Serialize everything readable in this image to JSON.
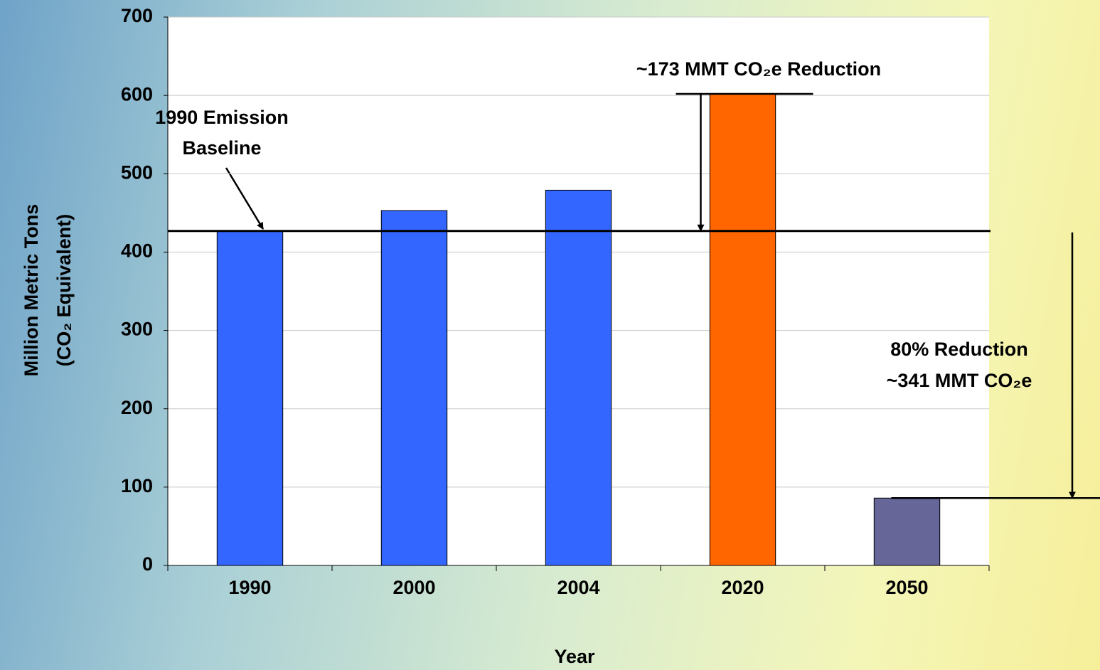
{
  "chart_data": {
    "type": "bar",
    "x_label": "Year",
    "y_label": [
      "Million Metric Tons",
      "(CO₂ Equivalent)"
    ],
    "categories": [
      "1990",
      "2000",
      "2004",
      "2020",
      "2050"
    ],
    "values": [
      427,
      453,
      479,
      602,
      86
    ],
    "colors": [
      "#3366ff",
      "#3366ff",
      "#3366ff",
      "#ff6600",
      "#666699"
    ],
    "ylim": [
      0,
      700
    ],
    "yticks": [
      0,
      100,
      200,
      300,
      400,
      500,
      600,
      700
    ],
    "grid": true,
    "baseline": 427,
    "annotations": [
      "1990 Emission",
      "Baseline",
      "~173 MMT CO₂e Reduction",
      "80% Reduction",
      "~341 MMT CO₂e"
    ]
  }
}
